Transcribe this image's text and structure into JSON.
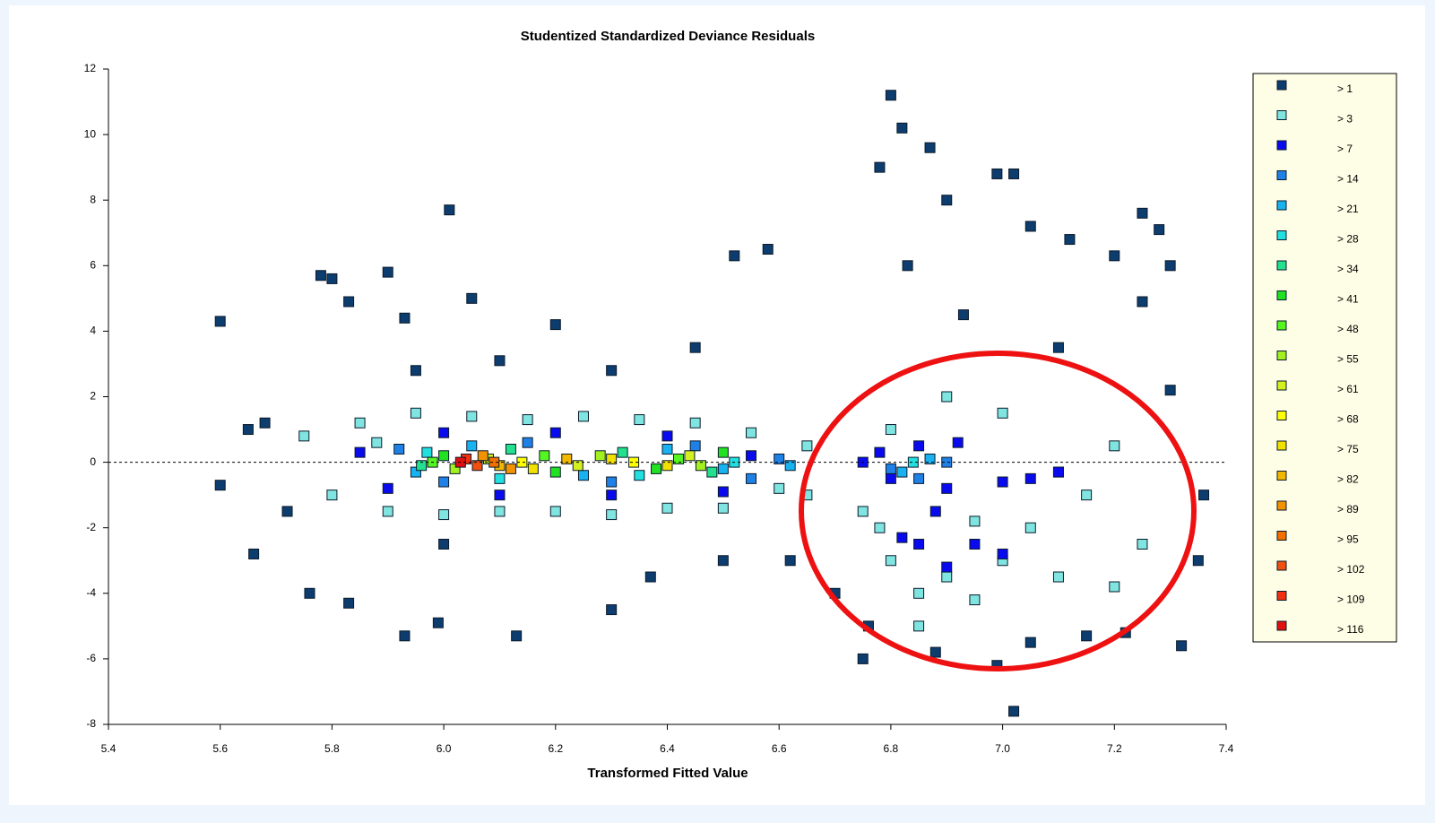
{
  "chart_data": {
    "type": "scatter",
    "title": "Studentized Standardized Deviance Residuals",
    "x_label": "Transformed Fitted Value",
    "xlim": [
      5.4,
      7.4
    ],
    "ylim": [
      -8,
      12
    ],
    "xticks": [
      5.4,
      5.6,
      5.8,
      {
        "value": 6,
        "label": "6.0"
      },
      6.2,
      6.4,
      6.6,
      6.8,
      {
        "value": 7,
        "label": "7.0"
      },
      7.2,
      7.4
    ],
    "yticks": [
      -8,
      -6,
      -4,
      -2,
      0,
      2,
      4,
      6,
      8,
      10,
      12
    ],
    "series": [
      {
        "name": "> 1",
        "color": "#0d3c6e",
        "x": [
          5.6,
          5.6,
          5.65,
          5.66,
          5.72,
          5.78,
          5.8,
          5.83,
          5.9,
          5.93,
          5.93,
          6.01,
          6.05,
          6.13,
          6.2,
          6.3,
          6.37,
          6.52,
          6.58,
          5.99,
          5.76,
          5.83,
          6.45,
          6.8,
          6.78,
          6.87,
          6.82,
          6.9,
          6.99,
          7.02,
          7.02,
          7.05,
          7.12,
          7.2,
          7.25,
          7.28,
          7.3,
          6.75,
          6.99,
          7.32,
          7.35,
          7.36,
          6.88,
          7.15,
          7.22,
          6.7,
          6.62,
          5.95,
          6.1,
          6.3,
          5.68,
          7.25,
          6.83,
          6.93,
          7.1,
          7.3,
          6.76,
          7.05,
          6.5,
          6.0
        ],
        "values": [
          4.3,
          -0.7,
          1.0,
          -2.8,
          -1.5,
          5.7,
          5.6,
          4.9,
          5.8,
          4.4,
          -5.3,
          7.7,
          5.0,
          -5.3,
          4.2,
          -4.5,
          -3.5,
          6.3,
          6.5,
          -4.9,
          -4.0,
          -4.3,
          3.5,
          11.2,
          9.0,
          9.6,
          10.2,
          8.0,
          8.8,
          8.8,
          -7.6,
          7.2,
          6.8,
          6.3,
          7.6,
          7.1,
          6.0,
          -6.0,
          -6.2,
          -5.6,
          -3.0,
          -1.0,
          -5.8,
          -5.3,
          -5.2,
          -4.0,
          -3.0,
          2.8,
          3.1,
          2.8,
          1.2,
          4.9,
          6.0,
          4.5,
          3.5,
          2.2,
          -5.0,
          -5.5,
          -3.0,
          -2.5
        ]
      },
      {
        "name": "> 3",
        "color": "#80e4e0",
        "x": [
          5.75,
          5.8,
          5.85,
          5.9,
          5.95,
          6.0,
          6.05,
          6.1,
          6.15,
          6.2,
          6.25,
          6.3,
          6.35,
          6.4,
          6.45,
          6.5,
          6.55,
          6.6,
          6.65,
          6.75,
          6.8,
          6.85,
          6.9,
          6.95,
          7.0,
          7.05,
          7.1,
          7.15,
          7.2,
          7.25,
          6.8,
          6.9,
          7.0,
          6.85,
          6.95,
          7.1,
          6.78,
          7.2,
          6.65,
          5.88
        ],
        "values": [
          0.8,
          -1.0,
          1.2,
          -1.5,
          1.5,
          -1.6,
          1.4,
          -1.5,
          1.3,
          -1.5,
          1.4,
          -1.6,
          1.3,
          -1.4,
          1.2,
          -1.4,
          0.9,
          -0.8,
          0.5,
          -1.5,
          -3.0,
          -4.0,
          -3.5,
          -4.2,
          -3.0,
          -2.0,
          -3.5,
          -1.0,
          0.5,
          -2.5,
          1.0,
          2.0,
          1.5,
          -5.0,
          -1.8,
          -0.3,
          -2.0,
          -3.8,
          -1.0,
          0.6
        ]
      },
      {
        "name": "> 7",
        "color": "#0a0aee",
        "x": [
          5.85,
          5.9,
          6.0,
          6.1,
          6.2,
          6.3,
          6.4,
          6.5,
          6.55,
          6.75,
          6.8,
          6.85,
          6.9,
          6.95,
          6.85,
          6.9,
          7.0,
          7.05,
          7.1,
          6.82,
          7.0,
          6.88,
          6.78,
          6.92
        ],
        "values": [
          0.3,
          -0.8,
          0.9,
          -1.0,
          0.9,
          -1.0,
          0.8,
          -0.9,
          0.2,
          0.0,
          -0.5,
          0.5,
          -0.8,
          -2.5,
          -2.5,
          -3.2,
          -0.6,
          -0.5,
          -0.3,
          -2.3,
          -2.8,
          -1.5,
          0.3,
          0.6
        ]
      },
      {
        "name": "> 14",
        "color": "#1f80e6",
        "x": [
          5.92,
          6.0,
          6.15,
          6.3,
          6.45,
          6.55,
          6.8,
          6.85,
          6.9,
          6.6
        ],
        "values": [
          0.4,
          -0.6,
          0.6,
          -0.6,
          0.5,
          -0.5,
          -0.2,
          -0.5,
          0.0,
          0.1
        ]
      },
      {
        "name": "> 21",
        "color": "#18b2f0",
        "x": [
          5.95,
          6.05,
          6.25,
          6.4,
          6.5,
          6.82,
          6.87,
          6.62
        ],
        "values": [
          -0.3,
          0.5,
          -0.4,
          0.4,
          -0.2,
          -0.3,
          0.1,
          -0.1
        ]
      },
      {
        "name": "> 28",
        "color": "#22e0e0",
        "x": [
          5.97,
          6.1,
          6.35,
          6.52,
          6.84
        ],
        "values": [
          0.3,
          -0.5,
          -0.4,
          0.0,
          0.0
        ]
      },
      {
        "name": "> 34",
        "color": "#22e08e",
        "x": [
          5.96,
          6.12,
          6.32,
          6.48
        ],
        "values": [
          -0.1,
          0.4,
          0.3,
          -0.3
        ]
      },
      {
        "name": "> 41",
        "color": "#22e022",
        "x": [
          6.0,
          6.2,
          6.38,
          6.5
        ],
        "values": [
          0.2,
          -0.3,
          -0.2,
          0.3
        ]
      },
      {
        "name": "> 48",
        "color": "#55f520",
        "x": [
          5.98,
          6.18,
          6.42
        ],
        "values": [
          0.0,
          0.2,
          0.1
        ]
      },
      {
        "name": "> 55",
        "color": "#a2f020",
        "x": [
          6.02,
          6.28,
          6.46
        ],
        "values": [
          -0.2,
          0.2,
          -0.1
        ]
      },
      {
        "name": "> 61",
        "color": "#d4f020",
        "x": [
          6.08,
          6.24,
          6.44
        ],
        "values": [
          0.1,
          -0.1,
          0.2
        ]
      },
      {
        "name": "> 68",
        "color": "#ffff00",
        "x": [
          6.14,
          6.34
        ],
        "values": [
          0.0,
          0.0
        ]
      },
      {
        "name": "> 75",
        "color": "#f2e000",
        "x": [
          6.16,
          6.3,
          6.4
        ],
        "values": [
          -0.2,
          0.1,
          -0.1
        ]
      },
      {
        "name": "> 82",
        "color": "#f2b800",
        "x": [
          6.1,
          6.22
        ],
        "values": [
          -0.1,
          0.1
        ]
      },
      {
        "name": "> 89",
        "color": "#f29200",
        "x": [
          6.07,
          6.12
        ],
        "values": [
          0.2,
          -0.2
        ]
      },
      {
        "name": "> 95",
        "color": "#f27000",
        "x": [
          6.09
        ],
        "values": [
          0.0
        ]
      },
      {
        "name": "> 102",
        "color": "#f05010",
        "x": [
          6.06
        ],
        "values": [
          -0.1
        ]
      },
      {
        "name": "> 109",
        "color": "#f03010",
        "x": [
          6.04
        ],
        "values": [
          0.1
        ]
      },
      {
        "name": "> 116",
        "color": "#e01010",
        "x": [
          6.03
        ],
        "values": [
          0.0
        ]
      }
    ]
  }
}
